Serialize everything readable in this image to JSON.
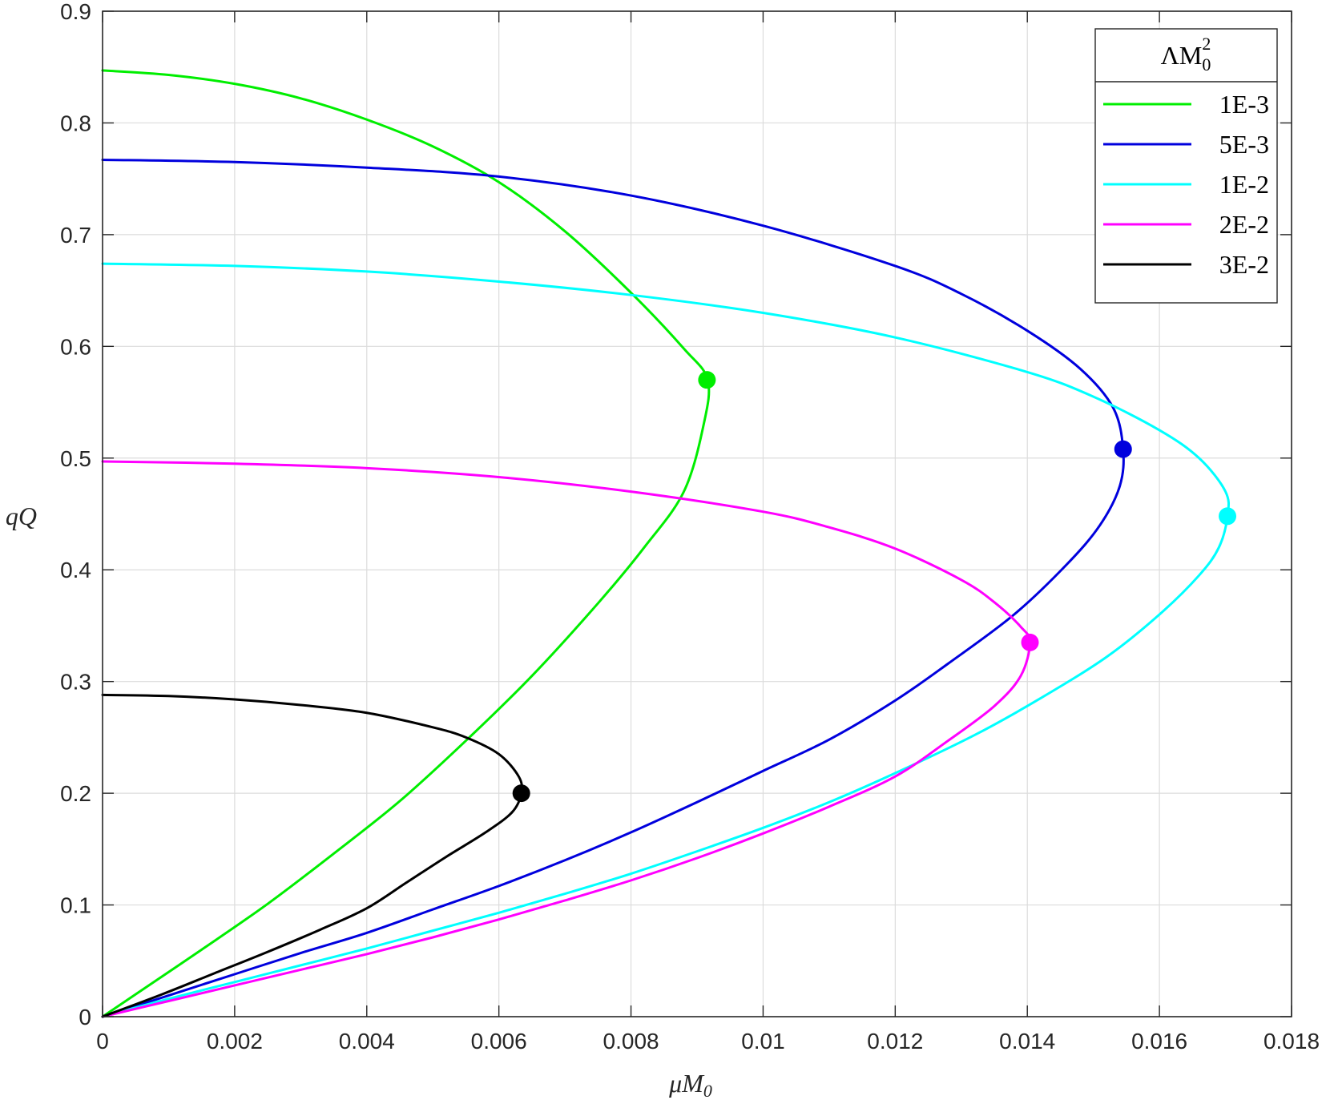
{
  "chart_data": {
    "type": "line",
    "xlabel": "μM",
    "xlabel_sub": "0",
    "ylabel": "qQ",
    "xlim": [
      0,
      0.018
    ],
    "ylim": [
      0,
      0.9
    ],
    "x_ticks": [
      0,
      0.002,
      0.004,
      0.006,
      0.008,
      0.01,
      0.012,
      0.014,
      0.016,
      0.018
    ],
    "x_tick_labels": [
      "0",
      "0.002",
      "0.004",
      "0.006",
      "0.008",
      "0.01",
      "0.012",
      "0.014",
      "0.016",
      "0.018"
    ],
    "y_ticks": [
      0,
      0.1,
      0.2,
      0.3,
      0.4,
      0.5,
      0.6,
      0.7,
      0.8,
      0.9
    ],
    "y_tick_labels": [
      "0",
      "0.1",
      "0.2",
      "0.3",
      "0.4",
      "0.5",
      "0.6",
      "0.7",
      "0.8",
      "0.9"
    ],
    "grid": true,
    "legend": {
      "placement": "top-right",
      "title_prefix": "ΛM",
      "title_sub": "0",
      "title_sup": "2"
    },
    "series": [
      {
        "name": "1E-3",
        "color": "#00ee00",
        "x": [
          0,
          0.001,
          0.002,
          0.003,
          0.004,
          0.005,
          0.006,
          0.007,
          0.008,
          0.0088,
          0.00916,
          0.0091,
          0.0088,
          0.0082,
          0.0075,
          0.0065,
          0.0055,
          0.0045,
          0.0035,
          0.0025,
          0.0015,
          0.0005,
          0
        ],
        "y": [
          0.847,
          0.843,
          0.835,
          0.822,
          0.803,
          0.779,
          0.747,
          0.703,
          0.648,
          0.598,
          0.57,
          0.53,
          0.47,
          0.42,
          0.37,
          0.305,
          0.247,
          0.193,
          0.146,
          0.101,
          0.06,
          0.02,
          0
        ],
        "marker": {
          "x": 0.00915,
          "y": 0.57
        }
      },
      {
        "name": "5E-3",
        "color": "#0000dd",
        "x": [
          0,
          0.002,
          0.004,
          0.006,
          0.008,
          0.01,
          0.012,
          0.013,
          0.014,
          0.0148,
          0.0153,
          0.01545,
          0.0154,
          0.0151,
          0.0146,
          0.0138,
          0.0128,
          0.012,
          0.011,
          0.01,
          0.009,
          0.008,
          0.007,
          0.006,
          0.005,
          0.004,
          0.003,
          0.002,
          0.001,
          0
        ],
        "y": [
          0.767,
          0.765,
          0.76,
          0.752,
          0.735,
          0.708,
          0.672,
          0.647,
          0.614,
          0.58,
          0.545,
          0.508,
          0.475,
          0.44,
          0.405,
          0.36,
          0.316,
          0.283,
          0.248,
          0.22,
          0.192,
          0.165,
          0.14,
          0.117,
          0.096,
          0.075,
          0.057,
          0.038,
          0.019,
          0
        ]
      },
      {
        "name": "1E-2",
        "color": "#00ffff",
        "x": [
          0,
          0.002,
          0.004,
          0.006,
          0.008,
          0.01,
          0.012,
          0.014,
          0.015,
          0.016,
          0.0166,
          0.017,
          0.01703,
          0.0169,
          0.0166,
          0.016,
          0.0152,
          0.0142,
          0.0132,
          0.012,
          0.011,
          0.01,
          0.009,
          0.008,
          0.007,
          0.006,
          0.005,
          0.004,
          0.003,
          0.002,
          0.001,
          0
        ],
        "y": [
          0.674,
          0.672,
          0.667,
          0.658,
          0.646,
          0.63,
          0.608,
          0.577,
          0.555,
          0.525,
          0.5,
          0.47,
          0.448,
          0.42,
          0.395,
          0.36,
          0.322,
          0.285,
          0.252,
          0.218,
          0.192,
          0.169,
          0.148,
          0.128,
          0.11,
          0.093,
          0.077,
          0.061,
          0.046,
          0.031,
          0.016,
          0
        ]
      },
      {
        "name": "2E-2",
        "color": "#ff00ff",
        "x": [
          0,
          0.002,
          0.004,
          0.006,
          0.008,
          0.01,
          0.011,
          0.012,
          0.013,
          0.0135,
          0.0139,
          0.01404,
          0.0139,
          0.0135,
          0.0128,
          0.012,
          0.011,
          0.01,
          0.009,
          0.008,
          0.007,
          0.006,
          0.005,
          0.004,
          0.003,
          0.002,
          0.001,
          0
        ],
        "y": [
          0.497,
          0.495,
          0.491,
          0.483,
          0.47,
          0.452,
          0.438,
          0.419,
          0.391,
          0.371,
          0.349,
          0.335,
          0.305,
          0.278,
          0.247,
          0.215,
          0.188,
          0.164,
          0.142,
          0.122,
          0.104,
          0.087,
          0.071,
          0.056,
          0.042,
          0.028,
          0.014,
          0
        ]
      },
      {
        "name": "3E-2",
        "color": "#000000",
        "x": [
          0,
          0.001,
          0.002,
          0.003,
          0.004,
          0.005,
          0.0055,
          0.006,
          0.0063,
          0.00634,
          0.0062,
          0.0058,
          0.0052,
          0.0046,
          0.004,
          0.0033,
          0.0025,
          0.0017,
          0.0009,
          0
        ],
        "y": [
          0.288,
          0.287,
          0.284,
          0.279,
          0.272,
          0.259,
          0.25,
          0.235,
          0.215,
          0.2,
          0.183,
          0.165,
          0.143,
          0.12,
          0.097,
          0.078,
          0.058,
          0.039,
          0.02,
          0
        ]
      }
    ],
    "markers": [
      {
        "series": "1E-3",
        "x": 0.00915,
        "y": 0.57
      },
      {
        "series": "5E-3",
        "x": 0.01545,
        "y": 0.508
      },
      {
        "series": "1E-2",
        "x": 0.01703,
        "y": 0.448
      },
      {
        "series": "2E-2",
        "x": 0.01404,
        "y": 0.335
      },
      {
        "series": "3E-2",
        "x": 0.00634,
        "y": 0.2
      }
    ]
  }
}
